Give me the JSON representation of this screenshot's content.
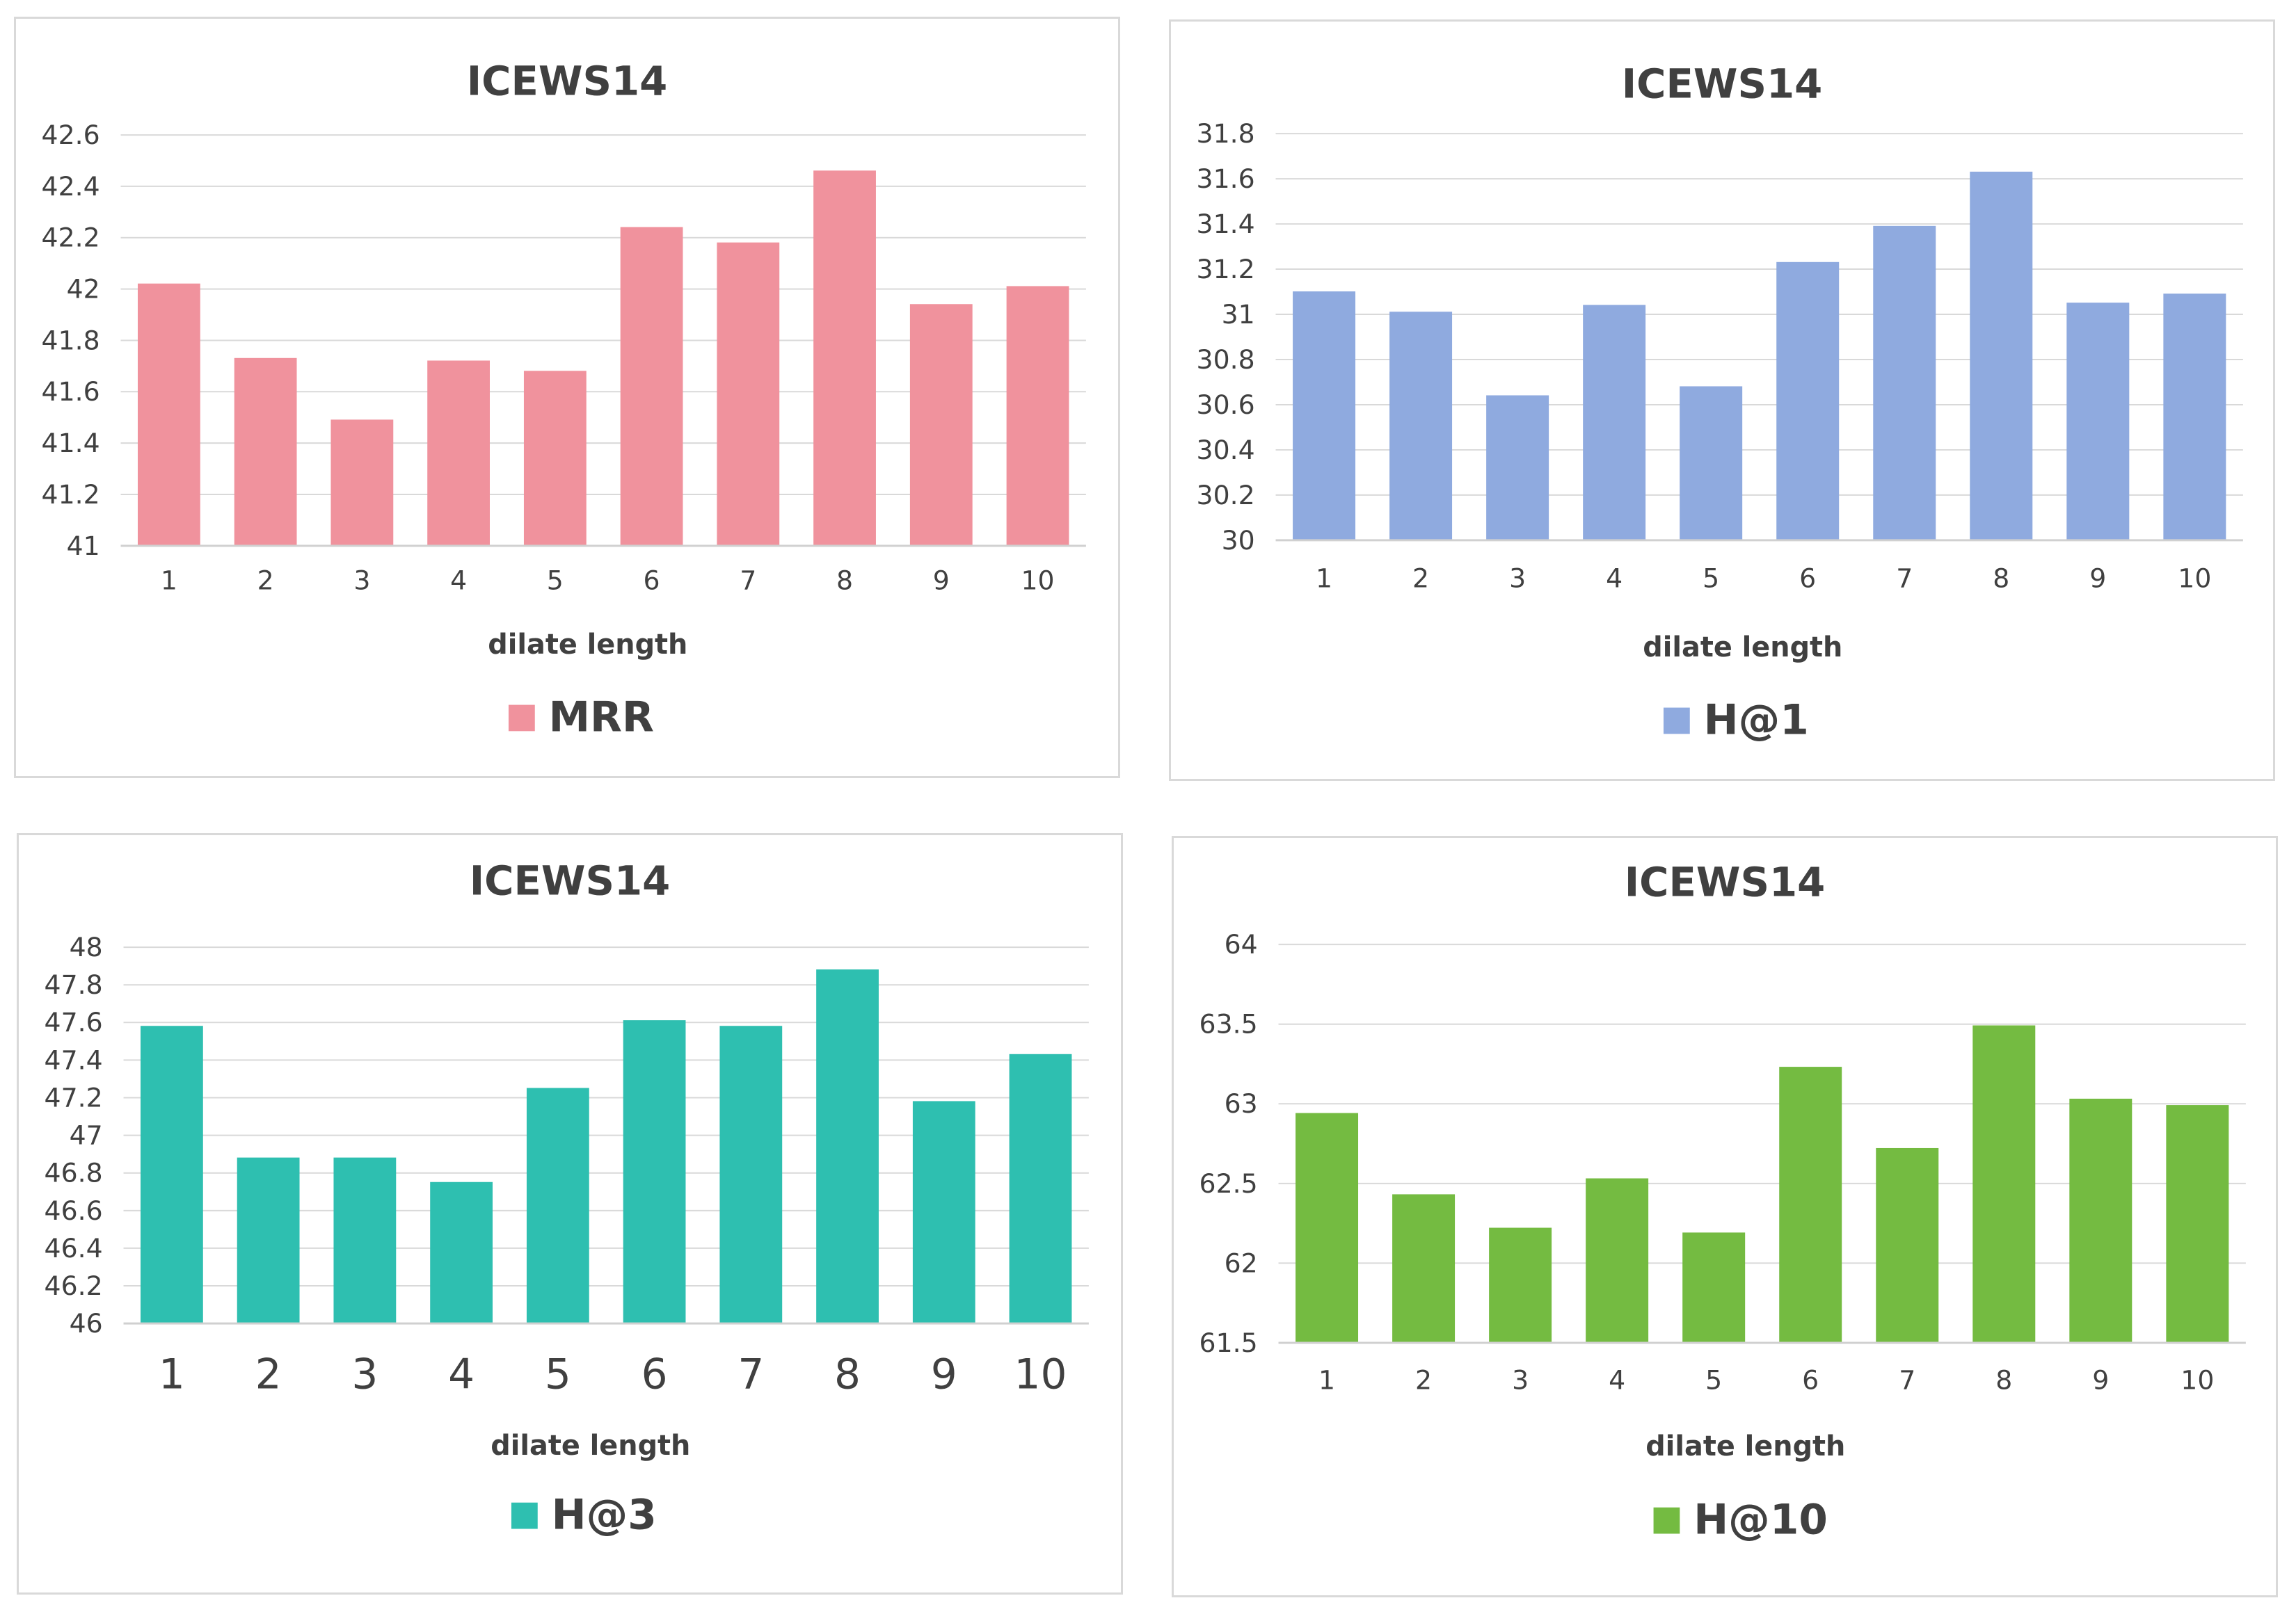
{
  "chart_data": [
    {
      "type": "bar",
      "title": "ICEWS14",
      "xlabel": "dilate length",
      "ylabel": "",
      "categories": [
        "1",
        "2",
        "3",
        "4",
        "5",
        "6",
        "7",
        "8",
        "9",
        "10"
      ],
      "series": [
        {
          "name": "MRR",
          "color": "#f0929d",
          "values": [
            42.02,
            41.73,
            41.49,
            41.72,
            41.68,
            42.24,
            42.18,
            42.46,
            41.94,
            42.01
          ]
        }
      ],
      "ylim": [
        41,
        42.6
      ],
      "yticks": [
        "41",
        "41.2",
        "41.4",
        "41.6",
        "41.8",
        "42",
        "42.2",
        "42.4",
        "42.6"
      ],
      "grid": true,
      "legend": "bottom-center"
    },
    {
      "type": "bar",
      "title": "ICEWS14",
      "xlabel": "dilate length",
      "ylabel": "",
      "categories": [
        "1",
        "2",
        "3",
        "4",
        "5",
        "6",
        "7",
        "8",
        "9",
        "10"
      ],
      "series": [
        {
          "name": "H@1",
          "color": "#8faadf",
          "values": [
            31.1,
            31.01,
            30.64,
            31.04,
            30.68,
            31.23,
            31.39,
            31.63,
            31.05,
            31.09
          ]
        }
      ],
      "ylim": [
        30,
        31.8
      ],
      "yticks": [
        "30",
        "30.2",
        "30.4",
        "30.6",
        "30.8",
        "31",
        "31.2",
        "31.4",
        "31.6",
        "31.8"
      ],
      "grid": true,
      "legend": "bottom-center"
    },
    {
      "type": "bar",
      "title": "ICEWS14",
      "xlabel": "dilate length",
      "ylabel": "",
      "categories": [
        "1",
        "2",
        "3",
        "4",
        "5",
        "6",
        "7",
        "8",
        "9",
        "10"
      ],
      "series": [
        {
          "name": "H@3",
          "color": "#2ebfb0",
          "values": [
            47.58,
            46.88,
            46.88,
            46.75,
            47.25,
            47.61,
            47.58,
            47.88,
            47.18,
            47.43
          ]
        }
      ],
      "ylim": [
        46,
        48
      ],
      "yticks": [
        "46",
        "46.2",
        "46.4",
        "46.6",
        "46.8",
        "47",
        "47.2",
        "47.4",
        "47.6",
        "47.8",
        "48"
      ],
      "grid": true,
      "legend": "bottom-center"
    },
    {
      "type": "bar",
      "title": "ICEWS14",
      "xlabel": "dilate length",
      "ylabel": "",
      "categories": [
        "1",
        "2",
        "3",
        "4",
        "5",
        "6",
        "7",
        "8",
        "9",
        "10"
      ],
      "series": [
        {
          "name": "H@10",
          "color": "#74bb41",
          "values": [
            62.94,
            62.43,
            62.22,
            62.53,
            62.19,
            63.23,
            62.72,
            63.49,
            63.03,
            62.99
          ]
        }
      ],
      "ylim": [
        61.5,
        64
      ],
      "yticks": [
        "61.5",
        "62",
        "62.5",
        "63",
        "63.5",
        "64"
      ],
      "grid": true,
      "legend": "bottom-center"
    }
  ]
}
